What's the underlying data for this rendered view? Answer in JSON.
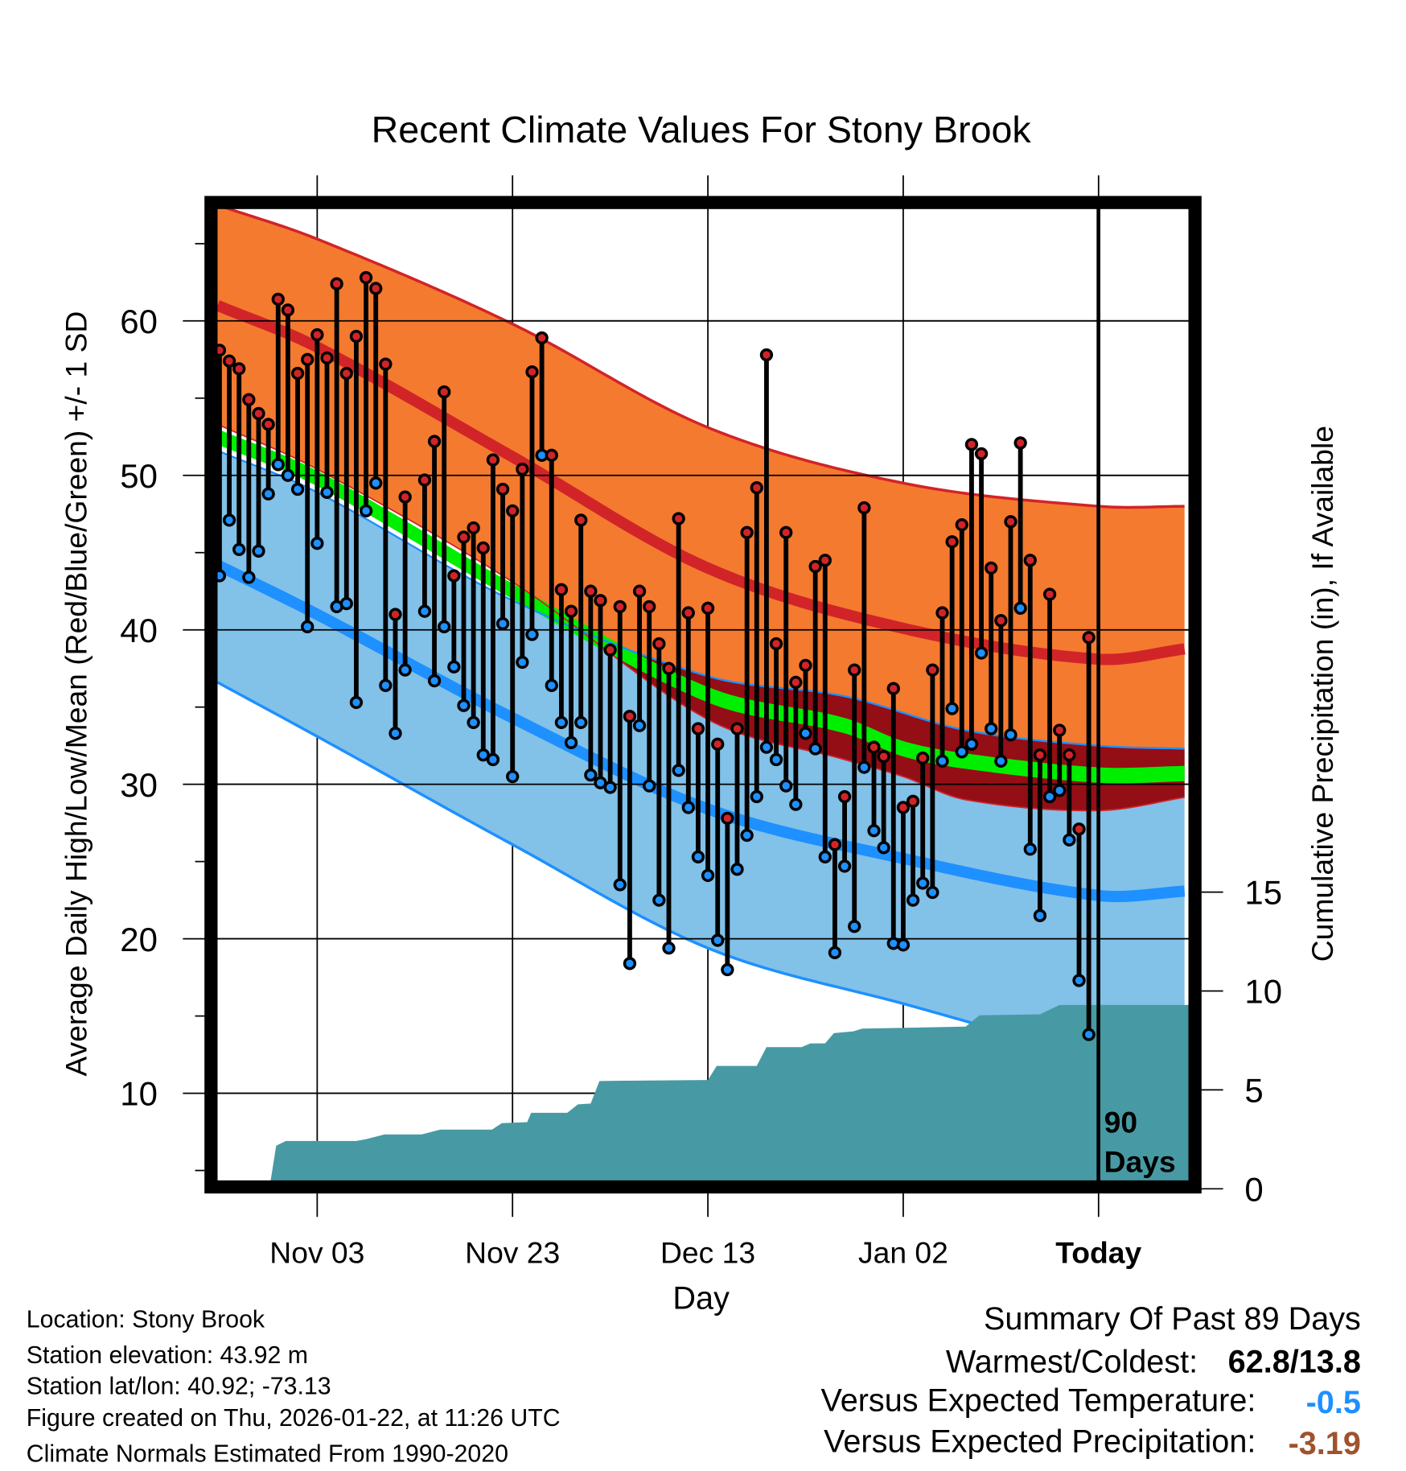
{
  "chart_data": {
    "type": "line",
    "title": "Recent Climate Values For Stony Brook",
    "xlabel": "Day",
    "ylabel": "Average Daily High/Low/Mean (Red/Blue/Green) +/- 1 SD",
    "y2label": "Cumulative Precipitation (in), If Available",
    "x_units": "days relative to today",
    "xlim": [
      -90.2,
      9.2
    ],
    "ylim": [
      4.3,
      67.3
    ],
    "y2lim": [
      0,
      20
    ],
    "x_ticks": [
      {
        "day": -80,
        "label": "Nov 03"
      },
      {
        "day": -60,
        "label": "Nov 23"
      },
      {
        "day": -40,
        "label": "Dec 13"
      },
      {
        "day": -20,
        "label": "Jan 02"
      },
      {
        "day": 0,
        "label": "Today"
      }
    ],
    "y_ticks": [
      10,
      20,
      30,
      40,
      50,
      60
    ],
    "y_ticks_labels": [
      "10",
      "20",
      "30",
      "40",
      "50",
      "60"
    ],
    "y2_ticks": [
      0,
      5,
      10,
      15
    ],
    "y2_ticks_labels": [
      "0",
      "5",
      "10",
      "15"
    ],
    "grid": true,
    "window_label": [
      "90",
      "Days"
    ],
    "observed": {
      "start_day": -90,
      "high": [
        58.1,
        57.4,
        56.9,
        54.9,
        54.0,
        53.3,
        61.4,
        60.7,
        56.6,
        57.5,
        59.1,
        57.6,
        62.4,
        56.6,
        59.0,
        62.8,
        62.1,
        57.2,
        41.0,
        48.6,
        null,
        49.7,
        52.2,
        55.4,
        43.5,
        46.0,
        46.6,
        45.3,
        51.0,
        49.1,
        47.7,
        50.4,
        56.7,
        58.9,
        51.3,
        42.6,
        41.2,
        47.1,
        42.5,
        41.9,
        38.7,
        41.5,
        34.4,
        42.5,
        41.5,
        39.1,
        37.5,
        47.2,
        41.1,
        33.6,
        41.4,
        32.6,
        27.8,
        33.6,
        46.3,
        49.2,
        57.8,
        39.1,
        46.3,
        36.6,
        37.7,
        44.1,
        44.5,
        26.1,
        29.2,
        37.4,
        47.9,
        32.4,
        31.8,
        36.2,
        28.5,
        28.9,
        31.7,
        37.4,
        41.1,
        45.7,
        46.8,
        52.0,
        51.4,
        44.0,
        40.6,
        47.0,
        52.1,
        44.5,
        31.9,
        42.3,
        33.5,
        31.9,
        27.1,
        39.5
      ],
      "low": [
        43.5,
        47.1,
        45.2,
        43.4,
        45.1,
        48.8,
        50.7,
        50.0,
        49.1,
        40.2,
        45.6,
        48.9,
        41.5,
        41.7,
        35.3,
        47.7,
        49.5,
        36.4,
        33.3,
        37.4,
        null,
        41.2,
        36.7,
        40.2,
        37.6,
        35.1,
        34.0,
        31.9,
        31.6,
        40.4,
        30.5,
        37.9,
        39.7,
        51.3,
        36.4,
        34.0,
        32.7,
        34.0,
        30.6,
        30.1,
        29.8,
        23.5,
        18.4,
        33.8,
        29.9,
        22.5,
        19.4,
        30.9,
        28.5,
        25.3,
        24.1,
        19.9,
        18.0,
        24.5,
        26.7,
        29.2,
        32.4,
        31.6,
        29.9,
        28.7,
        33.3,
        32.3,
        25.3,
        19.1,
        24.7,
        20.8,
        31.1,
        27.0,
        25.9,
        19.7,
        19.6,
        22.5,
        23.6,
        23.0,
        31.5,
        34.9,
        32.1,
        32.6,
        38.5,
        33.6,
        31.5,
        33.2,
        41.4,
        25.8,
        21.5,
        29.2,
        29.6,
        26.4,
        17.3,
        13.8
      ]
    },
    "normals": {
      "high_upper": [
        [
          -90.2,
          67.5
        ],
        [
          -80,
          65.3
        ],
        [
          -60,
          59.8
        ],
        [
          -40,
          53.1
        ],
        [
          -20,
          49.5
        ],
        [
          0,
          48.0
        ],
        [
          9.2,
          48.0
        ]
      ],
      "high_mean": [
        [
          -90.2,
          61.0
        ],
        [
          -80,
          58.3
        ],
        [
          -60,
          51.2
        ],
        [
          -40,
          44.0
        ],
        [
          -20,
          40.1
        ],
        [
          0,
          38.1
        ],
        [
          9.2,
          38.8
        ]
      ],
      "high_lower": [
        [
          -90.2,
          53.3
        ],
        [
          -80,
          50.4
        ],
        [
          -60,
          43.1
        ],
        [
          -40,
          34.2
        ],
        [
          -26,
          31.6
        ],
        [
          -20,
          30.5
        ],
        [
          -13.6,
          29.0
        ],
        [
          0,
          28.3
        ],
        [
          9.2,
          29.2
        ]
      ],
      "mean": [
        [
          -90.2,
          52.5
        ],
        [
          -80,
          49.8
        ],
        [
          -60,
          42.5
        ],
        [
          -40,
          35.8
        ],
        [
          -26,
          33.8
        ],
        [
          -20,
          32.3
        ],
        [
          -13.6,
          31.5
        ],
        [
          0,
          30.6
        ],
        [
          9.2,
          30.7
        ]
      ],
      "low_upper": [
        [
          -90.2,
          51.6
        ],
        [
          -80,
          48.9
        ],
        [
          -60,
          41.9
        ],
        [
          -40,
          37.0
        ],
        [
          -26,
          35.7
        ],
        [
          -13.6,
          33.5
        ],
        [
          0,
          32.5
        ],
        [
          9.2,
          32.3
        ]
      ],
      "low_mean": [
        [
          -90.2,
          44.2
        ],
        [
          -80,
          41.0
        ],
        [
          -60,
          34.3
        ],
        [
          -40,
          28.4
        ],
        [
          -20,
          25.2
        ],
        [
          0,
          22.8
        ],
        [
          9.2,
          23.1
        ]
      ],
      "low_lower": [
        [
          -90.2,
          36.6
        ],
        [
          -80,
          33.1
        ],
        [
          -60,
          26.1
        ],
        [
          -40,
          19.4
        ],
        [
          -20,
          15.8
        ],
        [
          0,
          12.5
        ],
        [
          9.2,
          12.2
        ]
      ]
    },
    "precip_cumulative": [
      [
        -90.2,
        0
      ],
      [
        -84.9,
        0
      ],
      [
        -84.2,
        2.18
      ],
      [
        -83.2,
        2.42
      ],
      [
        -76.0,
        2.42
      ],
      [
        -75.0,
        2.51
      ],
      [
        -73.1,
        2.75
      ],
      [
        -69.3,
        2.75
      ],
      [
        -67.4,
        2.99
      ],
      [
        -62.1,
        2.99
      ],
      [
        -61.1,
        3.32
      ],
      [
        -58.5,
        3.37
      ],
      [
        -58.1,
        3.84
      ],
      [
        -54.4,
        3.84
      ],
      [
        -53.3,
        4.27
      ],
      [
        -52.0,
        4.31
      ],
      [
        -51.1,
        5.45
      ],
      [
        -40.0,
        5.5
      ],
      [
        -39.1,
        6.21
      ],
      [
        -35.0,
        6.21
      ],
      [
        -34.0,
        7.16
      ],
      [
        -30.4,
        7.16
      ],
      [
        -29.5,
        7.35
      ],
      [
        -28.0,
        7.35
      ],
      [
        -27.1,
        7.87
      ],
      [
        -25.1,
        7.96
      ],
      [
        -24.2,
        8.1
      ],
      [
        -13.6,
        8.2
      ],
      [
        -12.2,
        8.77
      ],
      [
        -6.0,
        8.82
      ],
      [
        -4.0,
        9.29
      ],
      [
        9.2,
        9.29
      ]
    ]
  },
  "colors": {
    "high_band": "#f47a2f",
    "high_line": "#d12428",
    "overlap": "#940e16",
    "mean_band": "#00ee00",
    "low_band": "#82c1e8",
    "low_line": "#1e90ff",
    "precip": "#479aa3",
    "high_point": "#d12428",
    "low_point": "#1e90ff",
    "temp_anomaly": "#1e90ff",
    "precip_anomaly": "#a0522d"
  },
  "info": {
    "location": "Location: Stony Brook",
    "elevation": "Station elevation: 43.92 m",
    "latlon": "Station lat/lon: 40.92; -73.13",
    "created": "Figure created on Thu, 2026-01-22, at 11:26 UTC",
    "normals": "Climate Normals Estimated From 1990-2020"
  },
  "summary": {
    "title": "Summary Of Past 89 Days",
    "warmest_label": "Warmest/Coldest:",
    "warmest_value": "62.8/13.8",
    "temp_label": "Versus Expected Temperature:",
    "temp_value": "-0.5",
    "precip_label": "Versus Expected Precipitation:",
    "precip_value": "-3.19"
  }
}
